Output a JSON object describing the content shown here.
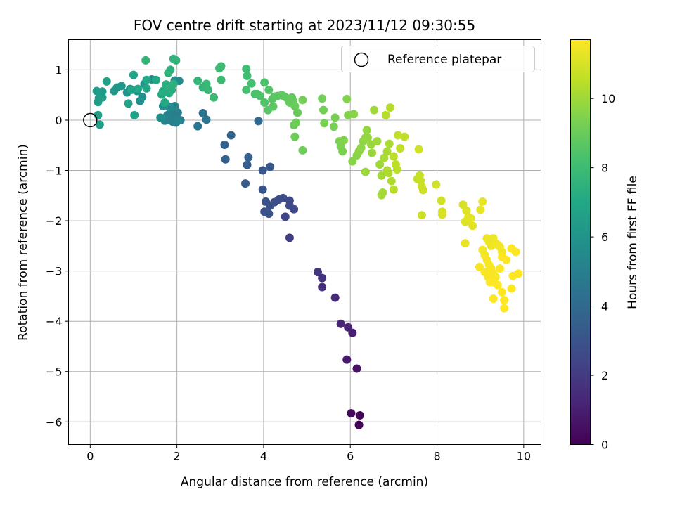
{
  "chart_data": {
    "type": "scatter",
    "title": "FOV centre drift starting at 2023/11/12 09:30:55",
    "xlabel": "Angular distance from reference (arcmin)",
    "ylabel": "Rotation from reference (arcmin)",
    "xlim": [
      -0.5,
      10.4
    ],
    "ylim": [
      -6.45,
      1.6
    ],
    "xticks": [
      "0",
      "2",
      "4",
      "6",
      "8",
      "10"
    ],
    "yticks": [
      "1",
      "0",
      "−1",
      "−2",
      "−3",
      "−4",
      "−5",
      "−6"
    ],
    "grid": true,
    "legend": {
      "placement": "top-right",
      "entries": [
        "Reference platepar"
      ]
    },
    "reference_point": {
      "x": 0.0,
      "y": 0.0
    },
    "colorbar": {
      "label": "Hours from first FF file",
      "range": [
        0,
        11.7
      ],
      "ticks": [
        "0",
        "2",
        "4",
        "6",
        "8",
        "10"
      ],
      "colormap": "viridis"
    },
    "points": [
      [
        6.2,
        -6.06,
        0.1
      ],
      [
        6.22,
        -5.87,
        0.2
      ],
      [
        6.02,
        -5.83,
        0.3
      ],
      [
        6.15,
        -4.94,
        0.6
      ],
      [
        5.92,
        -4.76,
        0.8
      ],
      [
        6.05,
        -4.23,
        1.0
      ],
      [
        5.95,
        -4.12,
        1.1
      ],
      [
        5.78,
        -4.05,
        1.2
      ],
      [
        5.65,
        -3.53,
        1.4
      ],
      [
        5.35,
        -3.32,
        1.6
      ],
      [
        5.35,
        -3.14,
        1.7
      ],
      [
        5.25,
        -3.02,
        1.8
      ],
      [
        4.6,
        -2.34,
        2.2
      ],
      [
        4.5,
        -1.92,
        2.4
      ],
      [
        4.7,
        -1.77,
        2.5
      ],
      [
        4.6,
        -1.7,
        2.6
      ],
      [
        4.6,
        -1.6,
        2.6
      ],
      [
        4.45,
        -1.55,
        2.7
      ],
      [
        4.35,
        -1.58,
        2.7
      ],
      [
        4.25,
        -1.63,
        2.8
      ],
      [
        4.15,
        -1.7,
        2.8
      ],
      [
        4.05,
        -1.62,
        2.9
      ],
      [
        4.12,
        -1.86,
        2.9
      ],
      [
        4.02,
        -1.82,
        3.0
      ],
      [
        3.98,
        -1.38,
        3.1
      ],
      [
        3.98,
        -1.0,
        3.2
      ],
      [
        4.15,
        -0.93,
        3.2
      ],
      [
        3.58,
        -1.26,
        3.3
      ],
      [
        3.62,
        -0.89,
        3.4
      ],
      [
        3.65,
        -0.74,
        3.5
      ],
      [
        3.12,
        -0.78,
        3.6
      ],
      [
        3.1,
        -0.49,
        3.7
      ],
      [
        3.25,
        -0.3,
        3.8
      ],
      [
        3.88,
        -0.02,
        4.0
      ],
      [
        2.68,
        0.01,
        4.4
      ],
      [
        2.6,
        0.14,
        4.5
      ],
      [
        2.48,
        -0.12,
        4.6
      ],
      [
        2.08,
        0.0,
        4.8
      ],
      [
        2.02,
        0.15,
        4.9
      ],
      [
        1.98,
        -0.05,
        5.0
      ],
      [
        1.93,
        0.07,
        5.0
      ],
      [
        1.9,
        -0.03,
        5.0
      ],
      [
        1.85,
        0.15,
        5.1
      ],
      [
        1.82,
        0.0,
        5.1
      ],
      [
        1.78,
        0.1,
        5.2
      ],
      [
        1.72,
        -0.01,
        5.2
      ],
      [
        1.65,
        0.04,
        5.3
      ],
      [
        2.02,
        -0.01,
        5.3
      ],
      [
        1.95,
        0.28,
        5.4
      ],
      [
        1.82,
        0.27,
        5.5
      ],
      [
        2.05,
        0.78,
        5.5
      ],
      [
        1.95,
        0.79,
        5.6
      ],
      [
        1.68,
        0.28,
        5.6
      ],
      [
        1.62,
        0.05,
        5.7
      ],
      [
        1.42,
        0.81,
        5.7
      ],
      [
        1.25,
        0.72,
        5.8
      ],
      [
        1.15,
        0.38,
        5.8
      ],
      [
        1.2,
        0.46,
        5.9
      ],
      [
        1.08,
        0.58,
        5.9
      ],
      [
        0.92,
        0.62,
        6.0
      ],
      [
        0.85,
        0.55,
        6.0
      ],
      [
        0.72,
        0.68,
        6.1
      ],
      [
        0.62,
        0.65,
        6.1
      ],
      [
        0.55,
        0.58,
        6.2
      ],
      [
        0.28,
        0.57,
        6.2
      ],
      [
        0.22,
        0.52,
        6.3
      ],
      [
        0.2,
        0.44,
        6.3
      ],
      [
        0.15,
        0.58,
        6.4
      ],
      [
        0.18,
        0.36,
        6.4
      ],
      [
        0.28,
        0.45,
        6.5
      ],
      [
        0.22,
        -0.09,
        6.5
      ],
      [
        0.18,
        0.1,
        6.6
      ],
      [
        0.38,
        0.77,
        6.6
      ],
      [
        0.88,
        0.33,
        6.7
      ],
      [
        1.02,
        0.1,
        6.7
      ],
      [
        1.0,
        0.9,
        6.8
      ],
      [
        0.95,
        0.6,
        6.8
      ],
      [
        1.1,
        0.62,
        6.9
      ],
      [
        1.3,
        0.63,
        6.9
      ],
      [
        1.3,
        0.8,
        7.0
      ],
      [
        1.52,
        0.8,
        7.0
      ],
      [
        1.65,
        0.51,
        7.1
      ],
      [
        1.72,
        0.35,
        7.1
      ],
      [
        1.68,
        0.58,
        7.2
      ],
      [
        1.82,
        0.54,
        7.2
      ],
      [
        1.88,
        0.6,
        7.3
      ],
      [
        1.75,
        0.71,
        7.3
      ],
      [
        1.92,
        0.72,
        7.4
      ],
      [
        1.85,
        1.0,
        7.4
      ],
      [
        1.8,
        0.94,
        7.5
      ],
      [
        1.92,
        1.22,
        7.5
      ],
      [
        1.98,
        1.19,
        7.6
      ],
      [
        1.28,
        1.19,
        7.6
      ],
      [
        2.48,
        0.78,
        7.7
      ],
      [
        2.6,
        0.65,
        7.7
      ],
      [
        2.68,
        0.72,
        7.8
      ],
      [
        2.72,
        0.6,
        7.8
      ],
      [
        2.85,
        0.45,
        7.9
      ],
      [
        2.98,
        1.03,
        7.9
      ],
      [
        3.02,
        1.07,
        8.0
      ],
      [
        3.02,
        0.8,
        8.0
      ],
      [
        3.6,
        1.02,
        8.1
      ],
      [
        3.62,
        0.88,
        8.1
      ],
      [
        3.72,
        0.73,
        8.2
      ],
      [
        3.6,
        0.6,
        8.2
      ],
      [
        3.8,
        0.52,
        8.3
      ],
      [
        3.85,
        0.52,
        8.3
      ],
      [
        3.92,
        0.48,
        8.4
      ],
      [
        4.02,
        0.75,
        8.4
      ],
      [
        4.12,
        0.6,
        8.5
      ],
      [
        4.02,
        0.35,
        8.5
      ],
      [
        4.1,
        0.2,
        8.6
      ],
      [
        4.2,
        0.42,
        8.6
      ],
      [
        4.25,
        0.47,
        8.7
      ],
      [
        4.22,
        0.27,
        8.7
      ],
      [
        4.32,
        0.48,
        8.7
      ],
      [
        4.42,
        0.5,
        8.8
      ],
      [
        4.48,
        0.47,
        8.8
      ],
      [
        4.55,
        0.43,
        8.8
      ],
      [
        4.6,
        0.35,
        8.9
      ],
      [
        4.65,
        0.45,
        8.9
      ],
      [
        4.68,
        0.38,
        8.9
      ],
      [
        4.72,
        0.28,
        9.0
      ],
      [
        4.78,
        0.15,
        9.0
      ],
      [
        4.7,
        -0.1,
        9.0
      ],
      [
        4.75,
        -0.05,
        9.1
      ],
      [
        4.72,
        -0.33,
        9.1
      ],
      [
        4.9,
        -0.6,
        9.1
      ],
      [
        4.9,
        0.4,
        9.2
      ],
      [
        5.35,
        0.43,
        9.2
      ],
      [
        5.38,
        0.2,
        9.2
      ],
      [
        5.4,
        -0.06,
        9.3
      ],
      [
        5.65,
        0.05,
        9.3
      ],
      [
        5.62,
        -0.13,
        9.3
      ],
      [
        5.75,
        -0.42,
        9.4
      ],
      [
        5.78,
        -0.52,
        9.4
      ],
      [
        5.82,
        -0.62,
        9.4
      ],
      [
        5.85,
        -0.4,
        9.5
      ],
      [
        5.92,
        0.42,
        9.5
      ],
      [
        5.95,
        0.1,
        9.5
      ],
      [
        6.08,
        0.12,
        9.6
      ],
      [
        6.05,
        -0.82,
        9.6
      ],
      [
        6.15,
        -0.7,
        9.6
      ],
      [
        6.2,
        -0.62,
        9.7
      ],
      [
        6.25,
        -0.55,
        9.7
      ],
      [
        6.3,
        -0.42,
        9.7
      ],
      [
        6.35,
        -0.35,
        9.8
      ],
      [
        6.38,
        -0.2,
        9.8
      ],
      [
        6.4,
        -0.35,
        9.8
      ],
      [
        6.35,
        -1.03,
        9.9
      ],
      [
        6.48,
        -0.48,
        9.9
      ],
      [
        6.5,
        -0.65,
        9.9
      ],
      [
        6.55,
        0.2,
        10.0
      ],
      [
        6.62,
        -0.42,
        10.0
      ],
      [
        6.68,
        -0.88,
        10.0
      ],
      [
        6.72,
        -1.1,
        10.1
      ],
      [
        6.75,
        -1.44,
        10.1
      ],
      [
        6.72,
        -1.49,
        10.1
      ],
      [
        6.78,
        -0.75,
        10.2
      ],
      [
        6.85,
        -0.62,
        10.2
      ],
      [
        6.9,
        -0.47,
        10.2
      ],
      [
        6.85,
        -1.0,
        10.3
      ],
      [
        6.88,
        -1.05,
        10.3
      ],
      [
        6.95,
        -1.21,
        10.3
      ],
      [
        7.0,
        -1.38,
        10.4
      ],
      [
        6.82,
        0.1,
        10.4
      ],
      [
        6.92,
        0.25,
        10.4
      ],
      [
        7.0,
        -0.72,
        10.5
      ],
      [
        7.05,
        -0.88,
        10.5
      ],
      [
        7.08,
        -0.98,
        10.5
      ],
      [
        7.1,
        -0.3,
        10.6
      ],
      [
        7.15,
        -0.56,
        10.6
      ],
      [
        7.25,
        -0.33,
        10.6
      ],
      [
        7.55,
        -1.17,
        10.7
      ],
      [
        7.6,
        -1.1,
        10.7
      ],
      [
        7.62,
        -1.2,
        10.7
      ],
      [
        7.65,
        -1.32,
        10.8
      ],
      [
        7.68,
        -1.39,
        10.8
      ],
      [
        7.65,
        -1.89,
        10.8
      ],
      [
        7.58,
        -0.58,
        10.9
      ],
      [
        7.98,
        -1.28,
        10.9
      ],
      [
        8.1,
        -1.6,
        10.9
      ],
      [
        8.12,
        -1.88,
        11.0
      ],
      [
        8.12,
        -1.82,
        11.0
      ],
      [
        8.6,
        -1.68,
        11.0
      ],
      [
        8.68,
        -1.8,
        11.1
      ],
      [
        8.65,
        -2.02,
        11.1
      ],
      [
        8.7,
        -2.0,
        11.1
      ],
      [
        8.72,
        -1.93,
        11.2
      ],
      [
        8.78,
        -1.95,
        11.2
      ],
      [
        8.82,
        -2.1,
        11.2
      ],
      [
        8.65,
        -2.45,
        11.3
      ],
      [
        9.0,
        -1.78,
        11.3
      ],
      [
        9.05,
        -1.62,
        11.3
      ],
      [
        9.15,
        -2.35,
        11.4
      ],
      [
        9.2,
        -2.42,
        11.4
      ],
      [
        9.25,
        -2.5,
        11.4
      ],
      [
        9.3,
        -2.35,
        11.4
      ],
      [
        9.35,
        -2.45,
        11.5
      ],
      [
        9.4,
        -2.48,
        11.5
      ],
      [
        9.45,
        -2.52,
        11.5
      ],
      [
        9.5,
        -2.62,
        11.5
      ],
      [
        9.05,
        -2.58,
        11.5
      ],
      [
        9.1,
        -2.68,
        11.5
      ],
      [
        9.15,
        -2.78,
        11.6
      ],
      [
        9.2,
        -2.88,
        11.6
      ],
      [
        9.25,
        -2.95,
        11.6
      ],
      [
        9.3,
        -3.05,
        11.6
      ],
      [
        9.35,
        -3.12,
        11.6
      ],
      [
        8.98,
        -2.92,
        11.6
      ],
      [
        9.1,
        -3.02,
        11.6
      ],
      [
        9.18,
        -3.12,
        11.6
      ],
      [
        9.28,
        -3.22,
        11.7
      ],
      [
        9.4,
        -3.28,
        11.7
      ],
      [
        9.5,
        -3.42,
        11.7
      ],
      [
        9.55,
        -3.58,
        11.7
      ],
      [
        9.55,
        -3.74,
        11.7
      ],
      [
        9.3,
        -3.55,
        11.7
      ],
      [
        9.45,
        -2.95,
        11.7
      ],
      [
        9.5,
        -2.72,
        11.7
      ],
      [
        9.6,
        -2.78,
        11.7
      ],
      [
        9.72,
        -2.55,
        11.7
      ],
      [
        9.82,
        -2.62,
        11.7
      ],
      [
        9.75,
        -3.1,
        11.7
      ],
      [
        9.88,
        -3.05,
        11.7
      ],
      [
        9.72,
        -3.35,
        11.7
      ],
      [
        9.22,
        -3.22,
        11.7
      ]
    ]
  }
}
